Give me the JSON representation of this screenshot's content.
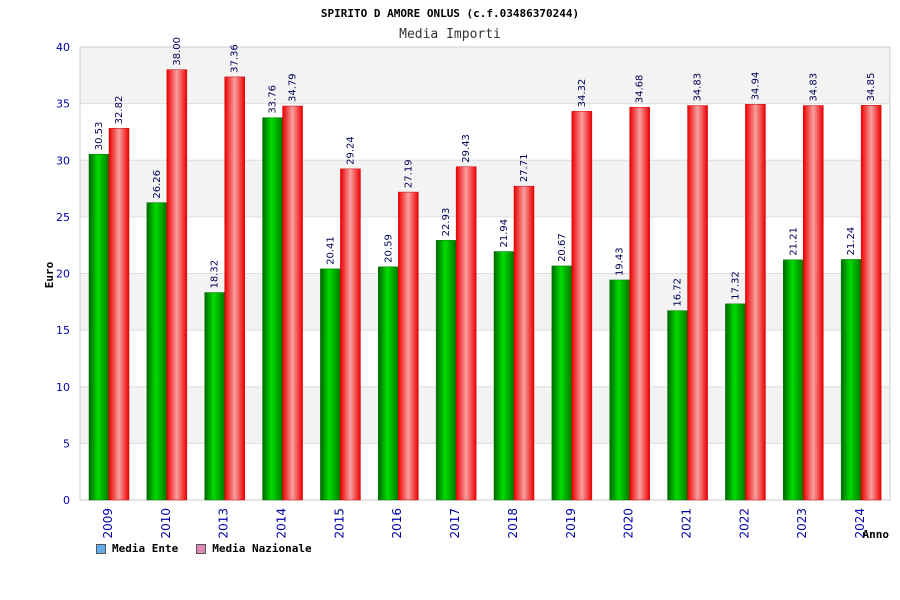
{
  "chart_data": {
    "type": "bar",
    "title": "SPIRITO D AMORE ONLUS (c.f.03486370244)",
    "subtitle": "Media Importi",
    "ylabel": "Euro",
    "xlabel": "Anno",
    "ylim": [
      0,
      40
    ],
    "yticks": [
      0,
      5,
      10,
      15,
      20,
      25,
      30,
      35,
      40
    ],
    "grid": true,
    "legend_position": "bottom-left",
    "categories": [
      "2009",
      "2010",
      "2013",
      "2014",
      "2015",
      "2016",
      "2017",
      "2018",
      "2019",
      "2020",
      "2021",
      "2022",
      "2023",
      "2024"
    ],
    "series": [
      {
        "name": "Media Ente",
        "color": "#00cc00",
        "swatch": "#66aaee",
        "values": [
          30.53,
          26.26,
          18.32,
          33.76,
          20.41,
          20.59,
          22.93,
          21.94,
          20.67,
          19.43,
          16.72,
          17.32,
          21.21,
          21.24
        ],
        "labels": [
          "30.53",
          "26.26",
          "18.32",
          "33.76",
          "20.41",
          "20.59",
          "22.93",
          "21.94",
          "20.67",
          "19.43",
          "16.72",
          "17.32",
          "21.21",
          "21.24"
        ]
      },
      {
        "name": "Media Nazionale",
        "color": "#ee1111",
        "swatch": "#dd88bb",
        "values": [
          32.82,
          38.0,
          37.36,
          34.79,
          29.24,
          27.19,
          29.43,
          27.71,
          34.32,
          34.68,
          34.83,
          34.94,
          34.83,
          34.85
        ],
        "labels": [
          "32.82",
          "38.00",
          "37.36",
          "34.79",
          "29.24",
          "27.19",
          "29.43",
          "27.71",
          "34.32",
          "34.68",
          "34.83",
          "34.94",
          "34.83",
          "34.85"
        ]
      }
    ]
  }
}
